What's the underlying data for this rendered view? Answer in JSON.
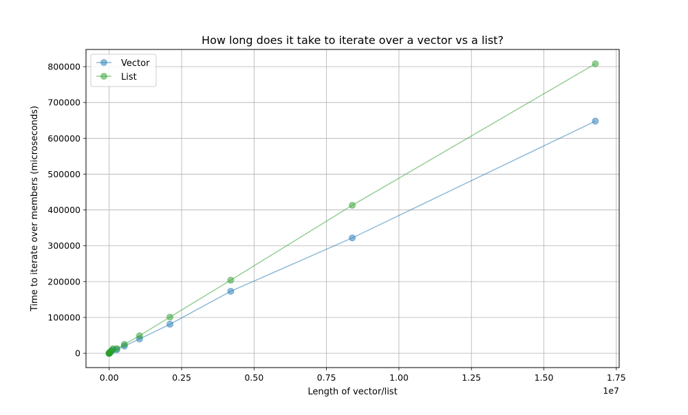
{
  "chart_data": {
    "type": "line",
    "title": "How long does it take to iterate over a vector vs a list?",
    "xlabel": "Length of vector/list",
    "ylabel": "Time to iterate over members (microseconds)",
    "x_offset_label": "1e7",
    "xlim": [
      -800000,
      17600000
    ],
    "ylim": [
      -40000,
      848000
    ],
    "x_ticks": [
      0,
      2500000,
      5000000,
      7500000,
      10000000,
      12500000,
      15000000,
      17500000
    ],
    "x_tick_labels": [
      "0.00",
      "0.25",
      "0.50",
      "0.75",
      "1.00",
      "1.25",
      "1.50",
      "1.75"
    ],
    "y_ticks": [
      0,
      100000,
      200000,
      300000,
      400000,
      500000,
      600000,
      700000,
      800000
    ],
    "y_tick_labels": [
      "0",
      "100000",
      "200000",
      "300000",
      "400000",
      "500000",
      "600000",
      "700000",
      "800000"
    ],
    "grid": true,
    "legend_position": "top-left",
    "x": [
      1,
      2,
      4,
      8,
      16,
      32,
      64,
      128,
      256,
      512,
      1024,
      2048,
      4096,
      8192,
      16384,
      32768,
      65536,
      131072,
      262144,
      524288,
      1048576,
      2097152,
      4194304,
      8388608,
      16777216
    ],
    "series": [
      {
        "name": "Vector",
        "color": "#1f77b4",
        "values": [
          0,
          0,
          0,
          0,
          0,
          0,
          0,
          0,
          0,
          0,
          100,
          150,
          300,
          600,
          1200,
          2400,
          4800,
          9600,
          10000,
          20000,
          40000,
          81000,
          173000,
          322000,
          648000
        ]
      },
      {
        "name": "List",
        "color": "#2ca02c",
        "values": [
          0,
          0,
          0,
          0,
          0,
          0,
          0,
          0,
          0,
          0,
          100,
          200,
          400,
          800,
          1600,
          3200,
          6400,
          12800,
          13000,
          25000,
          49000,
          101000,
          204000,
          413000,
          808000
        ]
      }
    ]
  }
}
